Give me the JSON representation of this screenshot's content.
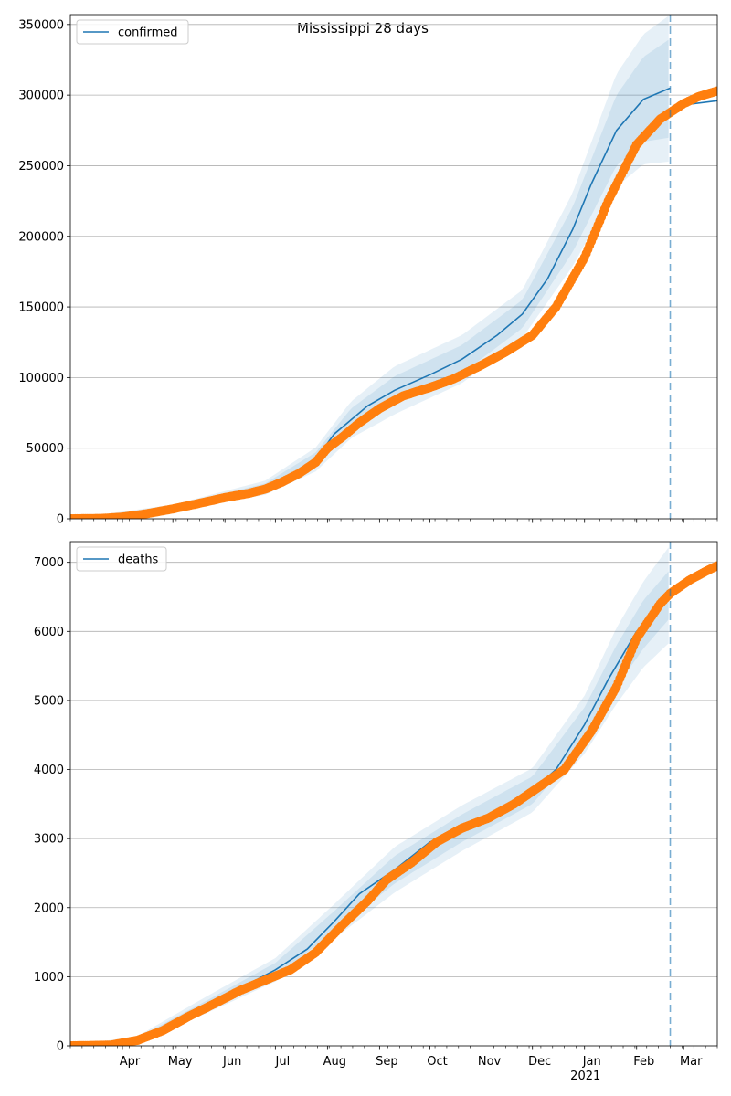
{
  "figure": {
    "title": "Mississippi 28 days",
    "forecast_start": "2021-02-21"
  },
  "x_axis": {
    "range": [
      "2020-03-01",
      "2021-03-21"
    ],
    "month_labels": [
      {
        "date": "2020-04-01",
        "label": "Apr"
      },
      {
        "date": "2020-05-01",
        "label": "May"
      },
      {
        "date": "2020-06-01",
        "label": "Jun"
      },
      {
        "date": "2020-07-01",
        "label": "Jul"
      },
      {
        "date": "2020-08-01",
        "label": "Aug"
      },
      {
        "date": "2020-09-01",
        "label": "Sep"
      },
      {
        "date": "2020-10-01",
        "label": "Oct"
      },
      {
        "date": "2020-11-01",
        "label": "Nov"
      },
      {
        "date": "2020-12-01",
        "label": "Dec"
      },
      {
        "date": "2021-01-01",
        "label": "Jan"
      },
      {
        "date": "2021-02-01",
        "label": "Feb"
      },
      {
        "date": "2021-03-01",
        "label": "Mar"
      }
    ],
    "year_label": {
      "date": "2021-01-01",
      "label": "2021"
    }
  },
  "colors": {
    "model_line": "#1f77b4",
    "observed": "#ff7f0e",
    "band": "#1f77b4",
    "grid": "#b0b0b0",
    "forecast_line": "#1f77b4"
  },
  "chart_data": [
    {
      "type": "line",
      "legend": {
        "label": "confirmed",
        "position": "top-left"
      },
      "ylim": [
        0,
        357000
      ],
      "yticks": [
        0,
        50000,
        100000,
        150000,
        200000,
        250000,
        300000,
        350000
      ],
      "grid": "horizontal",
      "model": {
        "dates": [
          "2020-03-01",
          "2020-04-01",
          "2020-05-01",
          "2020-06-01",
          "2020-06-25",
          "2020-07-15",
          "2020-07-25",
          "2020-08-05",
          "2020-08-15",
          "2020-08-25",
          "2020-09-10",
          "2020-10-01",
          "2020-10-20",
          "2020-11-10",
          "2020-11-25",
          "2020-12-10",
          "2020-12-25",
          "2021-01-05",
          "2021-01-20",
          "2021-02-05",
          "2021-02-21",
          "2021-02-22",
          "2021-03-21"
        ],
        "values": [
          0,
          1500,
          7500,
          16000,
          22000,
          34000,
          42000,
          60000,
          70000,
          80000,
          91000,
          102000,
          113000,
          130000,
          145000,
          170000,
          205000,
          237000,
          275000,
          297000,
          305000,
          292000,
          296000
        ]
      },
      "bands": {
        "dates": [
          "2020-03-01",
          "2020-05-01",
          "2020-06-25",
          "2020-07-25",
          "2020-08-15",
          "2020-09-10",
          "2020-10-20",
          "2020-11-25",
          "2020-12-25",
          "2021-01-20",
          "2021-02-05",
          "2021-02-21"
        ],
        "center": [
          0,
          7500,
          22000,
          42000,
          70000,
          91000,
          113000,
          145000,
          205000,
          275000,
          297000,
          305000
        ],
        "half_widths": [
          [
            0,
            1500,
            3000,
            5000,
            8000,
            10000,
            10000,
            10000,
            16000,
            25000,
            30000,
            35000
          ],
          [
            0,
            2500,
            5000,
            8500,
            13000,
            17000,
            17000,
            17000,
            26000,
            40000,
            46000,
            52000
          ]
        ]
      },
      "observed": {
        "dates": [
          "2020-03-01",
          "2020-03-20",
          "2020-04-01",
          "2020-04-15",
          "2020-05-01",
          "2020-05-15",
          "2020-06-01",
          "2020-06-15",
          "2020-06-25",
          "2020-07-05",
          "2020-07-15",
          "2020-07-25",
          "2020-08-01",
          "2020-08-10",
          "2020-08-20",
          "2020-09-01",
          "2020-09-15",
          "2020-10-01",
          "2020-10-15",
          "2020-11-01",
          "2020-11-15",
          "2020-12-01",
          "2020-12-15",
          "2021-01-01",
          "2021-01-15",
          "2021-02-01",
          "2021-02-15",
          "2021-03-01",
          "2021-03-10",
          "2021-03-21"
        ],
        "values": [
          0,
          300,
          1200,
          3500,
          7000,
          10500,
          15000,
          18000,
          21000,
          26000,
          32000,
          40000,
          50000,
          58000,
          68000,
          78000,
          87000,
          93000,
          99000,
          109000,
          118000,
          130000,
          150000,
          185000,
          225000,
          265000,
          283000,
          294000,
          299000,
          303000
        ]
      }
    },
    {
      "type": "line",
      "legend": {
        "label": "deaths",
        "position": "top-left"
      },
      "ylim": [
        0,
        7300
      ],
      "yticks": [
        0,
        1000,
        2000,
        3000,
        4000,
        5000,
        6000,
        7000
      ],
      "grid": "horizontal",
      "model": {
        "dates": [
          "2020-03-01",
          "2020-03-25",
          "2020-04-10",
          "2020-05-01",
          "2020-05-20",
          "2020-06-10",
          "2020-07-01",
          "2020-07-20",
          "2020-08-05",
          "2020-08-20",
          "2020-09-10",
          "2020-10-01",
          "2020-10-20",
          "2020-11-10",
          "2020-12-01",
          "2020-12-15",
          "2021-01-01",
          "2021-01-15",
          "2021-02-01",
          "2021-02-21",
          "2021-03-05",
          "2021-03-21"
        ],
        "values": [
          0,
          10,
          100,
          300,
          580,
          830,
          1100,
          1400,
          1800,
          2200,
          2550,
          2950,
          3150,
          3350,
          3700,
          4000,
          4650,
          5300,
          6000,
          6550,
          6750,
          6950
        ]
      },
      "bands": {
        "dates": [
          "2020-03-01",
          "2020-04-10",
          "2020-05-20",
          "2020-07-01",
          "2020-08-05",
          "2020-09-10",
          "2020-10-20",
          "2020-12-01",
          "2021-01-01",
          "2021-01-20",
          "2021-02-05",
          "2021-02-21"
        ],
        "center": [
          0,
          100,
          580,
          1100,
          1800,
          2550,
          3150,
          3700,
          4650,
          5500,
          6100,
          6550
        ],
        "half_widths": [
          [
            0,
            20,
            60,
            100,
            150,
            200,
            200,
            200,
            250,
            300,
            350,
            350
          ],
          [
            0,
            40,
            120,
            170,
            250,
            330,
            330,
            320,
            420,
            550,
            620,
            700
          ]
        ]
      },
      "observed": {
        "dates": [
          "2020-03-01",
          "2020-03-25",
          "2020-04-10",
          "2020-04-25",
          "2020-05-10",
          "2020-05-25",
          "2020-06-10",
          "2020-06-25",
          "2020-07-10",
          "2020-07-25",
          "2020-08-10",
          "2020-08-25",
          "2020-09-05",
          "2020-09-20",
          "2020-10-05",
          "2020-10-20",
          "2020-11-05",
          "2020-11-20",
          "2020-12-05",
          "2020-12-20",
          "2021-01-05",
          "2021-01-20",
          "2021-02-01",
          "2021-02-15",
          "2021-02-21",
          "2021-03-05",
          "2021-03-15",
          "2021-03-21"
        ],
        "values": [
          0,
          10,
          80,
          220,
          420,
          600,
          800,
          950,
          1100,
          1350,
          1750,
          2100,
          2400,
          2650,
          2950,
          3150,
          3300,
          3500,
          3750,
          4000,
          4550,
          5200,
          5900,
          6400,
          6550,
          6750,
          6880,
          6950
        ]
      }
    }
  ]
}
